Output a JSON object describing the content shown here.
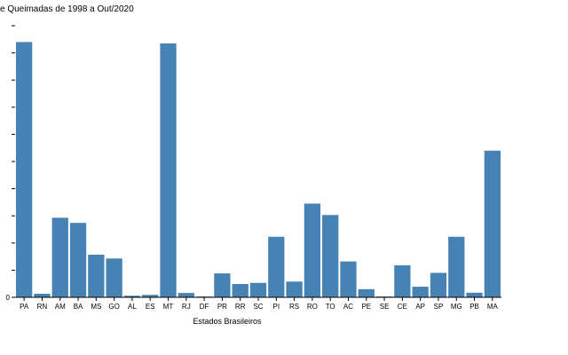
{
  "chart_data": {
    "type": "bar",
    "title": "e Queimadas de 1998 a Out/2020",
    "xlabel": "Estados Brasileiros",
    "ylabel": "",
    "categories": [
      "PA",
      "RN",
      "AM",
      "BA",
      "MS",
      "GO",
      "AL",
      "ES",
      "MT",
      "RJ",
      "DF",
      "PR",
      "RR",
      "SC",
      "PI",
      "RS",
      "RO",
      "TO",
      "AC",
      "PE",
      "SE",
      "CE",
      "AP",
      "SP",
      "MG",
      "PB",
      "MA"
    ],
    "values": [
      94.0,
      1.3,
      29.3,
      27.4,
      15.7,
      14.3,
      0.6,
      0.9,
      93.5,
      1.6,
      0.3,
      8.8,
      4.9,
      5.3,
      22.3,
      5.8,
      34.5,
      30.3,
      13.2,
      3.0,
      0.3,
      11.8,
      3.9,
      9.0,
      22.3,
      1.7,
      54.0
    ],
    "ylim": [
      0,
      100
    ],
    "y_ticks": [
      "0",
      "",
      "",
      "",
      "",
      "",
      "",
      "",
      "",
      "",
      ""
    ],
    "colors": {
      "bar": "#4682b4",
      "axis": "#000000"
    },
    "grid": false
  }
}
